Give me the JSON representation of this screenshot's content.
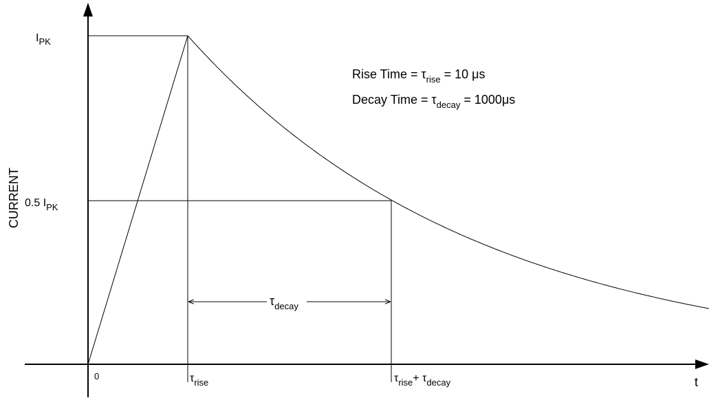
{
  "axes": {
    "y_label": "CURRENT",
    "x_label": "t"
  },
  "ticks": {
    "origin": "0",
    "tau_rise": {
      "symbol": "τ",
      "sub": "rise"
    },
    "tau_sum": {
      "symbol1": "τ",
      "sub1": "rise",
      "plus": "+ ",
      "symbol2": "τ",
      "sub2": "decay"
    },
    "i_pk": {
      "main": "I",
      "sub": "PK"
    },
    "half_pk": {
      "main": "0.5 I",
      "sub": "PK"
    }
  },
  "dimension": {
    "symbol": "τ",
    "sub": "decay"
  },
  "annotations": {
    "rise": {
      "prefix": "Rise Time = ",
      "symbol": "τ",
      "sub": "rise",
      "suffix": " = 10 ",
      "unit": "μs"
    },
    "decay": {
      "prefix": "Decay Time = ",
      "symbol": "τ",
      "sub": "decay",
      "suffix": " = 1000",
      "unit": "μs"
    }
  },
  "colors": {
    "line": "#000000",
    "guide": "#000000",
    "background": "#ffffff"
  }
}
